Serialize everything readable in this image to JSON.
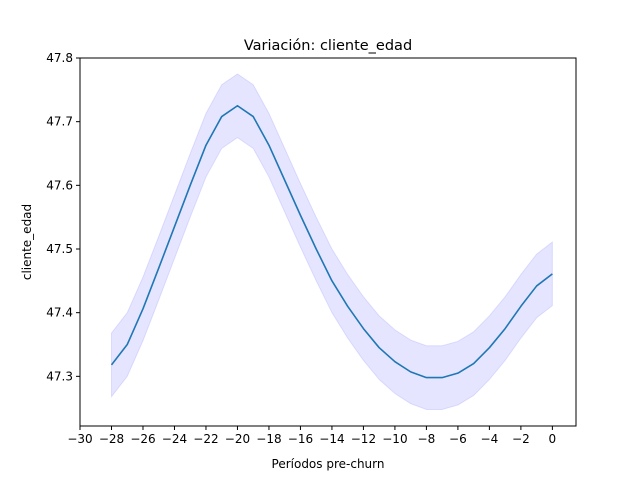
{
  "chart_data": {
    "type": "line",
    "title": "Variación: cliente_edad",
    "xlabel": "Períodos pre-churn",
    "ylabel": "cliente_edad",
    "xlim": [
      -30,
      1.5
    ],
    "ylim": [
      47.222,
      47.8
    ],
    "x_ticks": [
      -30,
      -28,
      -26,
      -24,
      -22,
      -20,
      -18,
      -16,
      -14,
      -12,
      -10,
      -8,
      -6,
      -4,
      -2,
      0
    ],
    "x_tick_labels": [
      "−30",
      "−28",
      "−26",
      "−24",
      "−22",
      "−20",
      "−18",
      "−16",
      "−14",
      "−12",
      "−10",
      "−8",
      "−6",
      "−4",
      "−2",
      "0"
    ],
    "y_ticks": [
      47.3,
      47.4,
      47.5,
      47.6,
      47.7,
      47.8
    ],
    "y_tick_labels": [
      "47.3",
      "47.4",
      "47.5",
      "47.6",
      "47.7",
      "47.8"
    ],
    "grid": false,
    "colors": {
      "line": "#1f77b4",
      "band": "#0000ff"
    },
    "series": [
      {
        "x": [
          -28,
          -27,
          -26,
          -25,
          -24,
          -23,
          -22,
          -21,
          -20,
          -19,
          -18,
          -17,
          -16,
          -15,
          -14,
          -13,
          -12,
          -11,
          -10,
          -9,
          -8,
          -7,
          -6,
          -5,
          -4,
          -3,
          -2,
          -1,
          0
        ],
        "values": [
          47.318,
          47.35,
          47.406,
          47.47,
          47.535,
          47.6,
          47.663,
          47.708,
          47.725,
          47.708,
          47.663,
          47.608,
          47.553,
          47.5,
          47.45,
          47.41,
          47.375,
          47.345,
          47.323,
          47.307,
          47.298,
          47.298,
          47.305,
          47.32,
          47.345,
          47.375,
          47.41,
          47.442,
          47.461
        ],
        "upper": [
          47.368,
          47.4,
          47.456,
          47.52,
          47.585,
          47.65,
          47.713,
          47.758,
          47.775,
          47.758,
          47.713,
          47.658,
          47.603,
          47.55,
          47.5,
          47.46,
          47.425,
          47.395,
          47.373,
          47.357,
          47.348,
          47.348,
          47.355,
          47.37,
          47.395,
          47.425,
          47.46,
          47.492,
          47.511
        ],
        "lower": [
          47.268,
          47.3,
          47.356,
          47.42,
          47.485,
          47.55,
          47.613,
          47.658,
          47.675,
          47.658,
          47.613,
          47.558,
          47.503,
          47.45,
          47.4,
          47.36,
          47.325,
          47.295,
          47.273,
          47.257,
          47.248,
          47.248,
          47.255,
          47.27,
          47.295,
          47.325,
          47.36,
          47.392,
          47.411
        ]
      }
    ]
  }
}
